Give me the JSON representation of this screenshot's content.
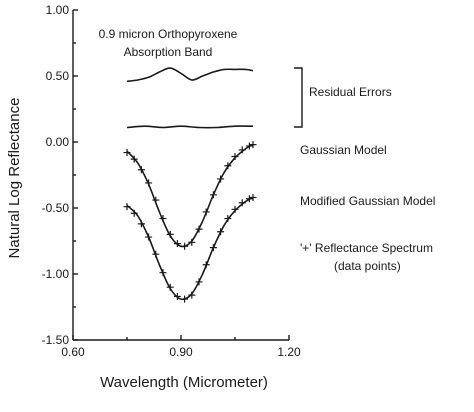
{
  "chart_data": {
    "type": "line",
    "title": "0.9 micron Orthopyroxene Absorption Band",
    "title_lines": [
      "0.9 micron Orthopyroxene",
      "Absorption Band"
    ],
    "xlabel": "Wavelength (Micrometer)",
    "ylabel": "Natural Log Reflectance",
    "xlim": [
      0.6,
      1.2
    ],
    "ylim": [
      -1.5,
      1.0
    ],
    "xticks": [
      0.6,
      0.9,
      1.2
    ],
    "xtick_labels": [
      "0.60",
      "0.90",
      "1.20"
    ],
    "yticks": [
      1.0,
      0.5,
      0.0,
      -0.5,
      -1.0,
      -1.5
    ],
    "ytick_labels": [
      "1.00",
      "0.50",
      "0.00",
      "-0.50",
      "-1.00",
      "-1.50"
    ],
    "grid": false,
    "series": [
      {
        "name": "Residual Errors",
        "x": [
          0.75,
          0.78,
          0.81,
          0.84,
          0.87,
          0.9,
          0.93,
          0.96,
          0.99,
          1.02,
          1.05,
          1.08,
          1.1
        ],
        "y": [
          0.46,
          0.47,
          0.49,
          0.53,
          0.56,
          0.52,
          0.47,
          0.5,
          0.53,
          0.55,
          0.55,
          0.55,
          0.54
        ]
      },
      {
        "name": "Residual Errors",
        "x": [
          0.75,
          0.8,
          0.85,
          0.9,
          0.95,
          1.0,
          1.05,
          1.1
        ],
        "y": [
          0.11,
          0.12,
          0.11,
          0.12,
          0.11,
          0.11,
          0.12,
          0.12
        ]
      },
      {
        "name": "Gaussian Model",
        "x": [
          0.75,
          0.78,
          0.81,
          0.84,
          0.87,
          0.9,
          0.93,
          0.96,
          0.99,
          1.02,
          1.05,
          1.08,
          1.1
        ],
        "y": [
          -0.07,
          -0.16,
          -0.32,
          -0.53,
          -0.71,
          -0.79,
          -0.75,
          -0.6,
          -0.4,
          -0.23,
          -0.12,
          -0.05,
          -0.02
        ]
      },
      {
        "name": "'+' Reflectance Spectrum",
        "x": [
          0.75,
          0.77,
          0.79,
          0.81,
          0.83,
          0.85,
          0.87,
          0.89,
          0.91,
          0.93,
          0.95,
          0.97,
          0.99,
          1.01,
          1.03,
          1.05,
          1.07,
          1.09,
          1.1
        ],
        "y": [
          -0.08,
          -0.13,
          -0.21,
          -0.31,
          -0.44,
          -0.58,
          -0.7,
          -0.77,
          -0.79,
          -0.76,
          -0.66,
          -0.53,
          -0.4,
          -0.28,
          -0.18,
          -0.11,
          -0.06,
          -0.03,
          -0.02
        ]
      },
      {
        "name": "Modified Gaussian Model",
        "x": [
          0.75,
          0.78,
          0.81,
          0.84,
          0.87,
          0.9,
          0.93,
          0.96,
          0.99,
          1.02,
          1.05,
          1.08,
          1.1
        ],
        "y": [
          -0.48,
          -0.56,
          -0.72,
          -0.93,
          -1.11,
          -1.19,
          -1.15,
          -1.0,
          -0.8,
          -0.63,
          -0.52,
          -0.45,
          -0.42
        ]
      },
      {
        "name": "'+' Reflectance Spectrum",
        "x": [
          0.75,
          0.77,
          0.79,
          0.81,
          0.83,
          0.85,
          0.87,
          0.89,
          0.91,
          0.93,
          0.95,
          0.97,
          0.99,
          1.01,
          1.03,
          1.05,
          1.07,
          1.09,
          1.1
        ],
        "y": [
          -0.49,
          -0.54,
          -0.62,
          -0.72,
          -0.85,
          -0.99,
          -1.1,
          -1.17,
          -1.19,
          -1.16,
          -1.06,
          -0.93,
          -0.8,
          -0.68,
          -0.58,
          -0.51,
          -0.46,
          -0.43,
          -0.42
        ]
      }
    ],
    "annotations": {
      "residual": "Residual Errors",
      "gaussian": "Gaussian Model",
      "modified": "Modified Gaussian Model",
      "spectrum_line1": "'+' Reflectance Spectrum",
      "spectrum_line2": "(data points)"
    },
    "colors": {
      "ink": "#1a1a1a",
      "background": "#ffffff"
    }
  }
}
